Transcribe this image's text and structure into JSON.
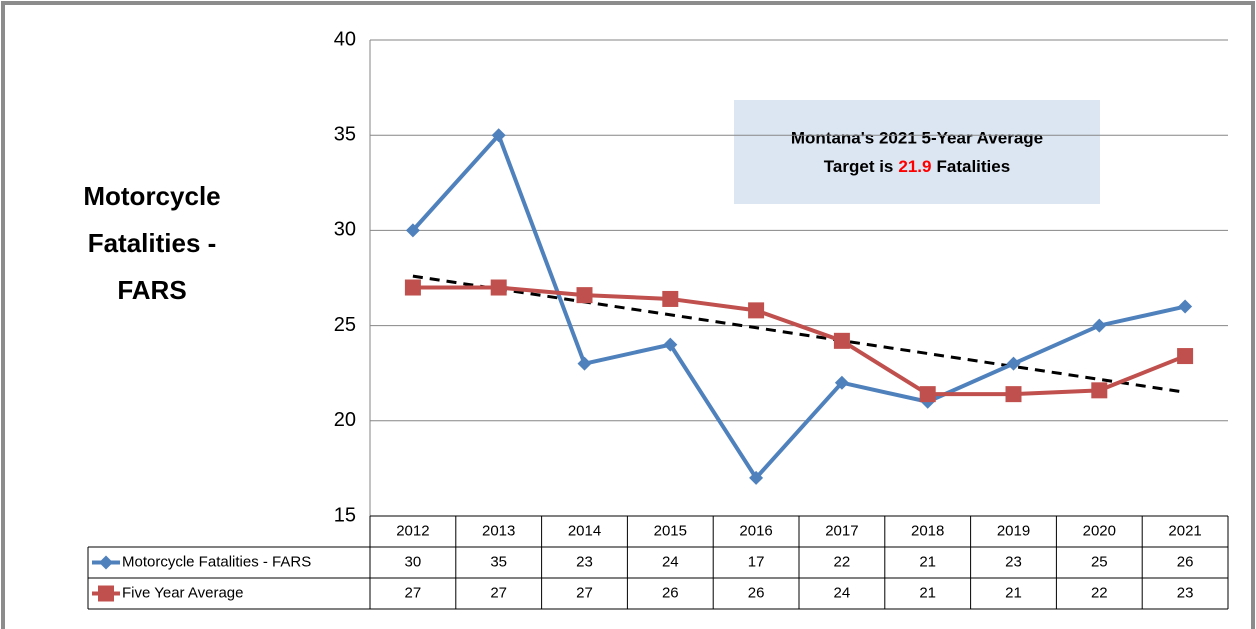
{
  "chart_data": {
    "type": "line",
    "ylabel_lines": [
      "Motorcycle",
      "Fatalities -",
      "FARS"
    ],
    "categories": [
      "2012",
      "2013",
      "2014",
      "2015",
      "2016",
      "2017",
      "2018",
      "2019",
      "2020",
      "2021"
    ],
    "series": [
      {
        "name": "Motorcycle Fatalities - FARS",
        "color": "#4f81bd",
        "marker": "diamond",
        "values": [
          30,
          35,
          23,
          24,
          17,
          22,
          21,
          23,
          25,
          26
        ]
      },
      {
        "name": "Five Year Average",
        "color": "#c0504d",
        "marker": "square",
        "values": [
          27,
          27,
          26.6,
          26.4,
          25.8,
          24.2,
          21.4,
          21.4,
          21.6,
          23.4
        ],
        "value_labels": [
          "27",
          "27",
          "27",
          "26",
          "26",
          "24",
          "21",
          "21",
          "22",
          "23"
        ]
      }
    ],
    "trendline": [
      27.6,
      21.5
    ],
    "ylim": [
      15,
      40
    ],
    "yticks": [
      15,
      20,
      25,
      30,
      35,
      40
    ],
    "grid": true,
    "annotation": {
      "line1": "Montana's 2021 5-Year Average",
      "prefix": "Target is",
      "target": 21.9,
      "suffix": "Fatalities"
    }
  }
}
